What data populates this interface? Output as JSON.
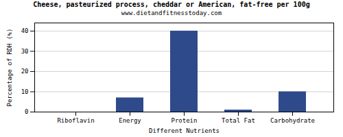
{
  "chart_data": {
    "type": "bar",
    "title": "Cheese, pasteurized process, cheddar or American, fat-free per 100g",
    "subtitle": "www.dietandfitnesstoday.com",
    "xlabel": "Different Nutrients",
    "ylabel": "Percentage of RDH (%)",
    "categories": [
      "Riboflavin",
      "Energy",
      "Protein",
      "Total Fat",
      "Carbohydrate"
    ],
    "values": [
      0,
      7,
      40,
      1,
      10
    ],
    "color": "#2e4a8a",
    "ylim": [
      0,
      44
    ],
    "yticks": [
      0,
      10,
      20,
      30,
      40
    ],
    "grid": true
  }
}
